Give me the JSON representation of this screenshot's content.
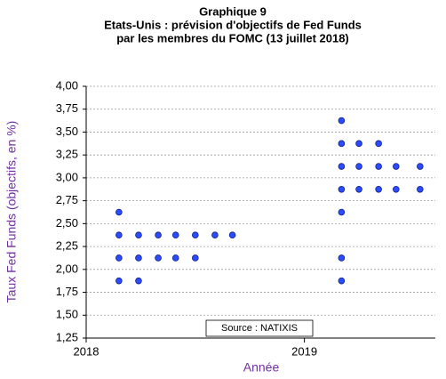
{
  "chart_data": {
    "type": "scatter",
    "title": [
      "Graphique 9",
      "Etats-Unis : prévision d'objectifs de Fed Funds",
      "par les membres du FOMC (13 juillet 2018)"
    ],
    "y_label": "Taux Fed Funds (objectifs, en %)",
    "x_label": "Année",
    "annotation": "Source : NATIXIS",
    "color": "#2b4bff",
    "x": [
      2018.15,
      2018.15,
      2018.24,
      2018.33,
      2018.41,
      2018.5,
      2018.59,
      2018.67,
      2018.15,
      2018.24,
      2018.33,
      2018.41,
      2018.5,
      2018.15,
      2018.24,
      2019.17,
      2019.17,
      2019.25,
      2019.34,
      2019.17,
      2019.25,
      2019.34,
      2019.42,
      2019.53,
      2019.17,
      2019.25,
      2019.34,
      2019.42,
      2019.53,
      2019.17,
      2019.17,
      2019.17
    ],
    "values": [
      2.625,
      2.375,
      2.375,
      2.375,
      2.375,
      2.375,
      2.375,
      2.375,
      2.125,
      2.125,
      2.125,
      2.125,
      2.125,
      1.875,
      1.875,
      3.625,
      3.375,
      3.375,
      3.375,
      3.125,
      3.125,
      3.125,
      3.125,
      3.125,
      2.875,
      2.875,
      2.875,
      2.875,
      2.875,
      2.625,
      2.125,
      1.875
    ],
    "xlim": [
      2018,
      2019.6
    ],
    "xticks": [
      2018,
      2019
    ],
    "ylim": [
      1.25,
      4.0
    ],
    "yticks": [
      {
        "value": 1.25,
        "label": "1,25"
      },
      {
        "value": 1.5,
        "label": "1,50"
      },
      {
        "value": 1.75,
        "label": "1,75"
      },
      {
        "value": 2.0,
        "label": "2,00"
      },
      {
        "value": 2.25,
        "label": "2,25"
      },
      {
        "value": 2.5,
        "label": "2,50"
      },
      {
        "value": 2.75,
        "label": "2,75"
      },
      {
        "value": 3.0,
        "label": "3,00"
      },
      {
        "value": 3.25,
        "label": "3,25"
      },
      {
        "value": 3.5,
        "label": "3,50"
      },
      {
        "value": 3.75,
        "label": "3,75"
      },
      {
        "value": 4.0,
        "label": "4,00"
      }
    ],
    "grid": true
  }
}
